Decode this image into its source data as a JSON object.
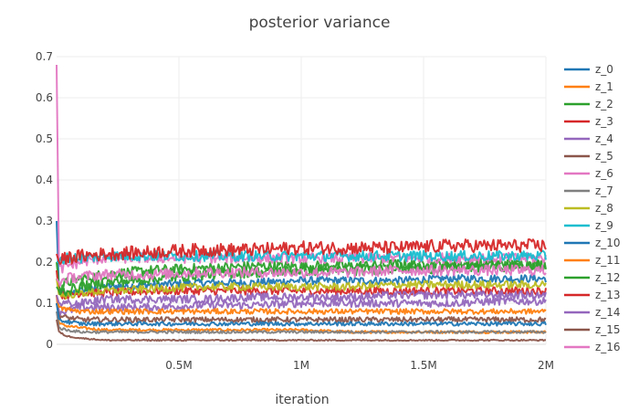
{
  "chart_data": {
    "type": "line",
    "title": "posterior variance",
    "xlabel": "iteration",
    "ylabel": "",
    "xlim": [
      0,
      2000000
    ],
    "ylim": [
      0,
      0.7
    ],
    "x_ticks": [
      {
        "value": 500000,
        "label": "0.5M"
      },
      {
        "value": 1000000,
        "label": "1M"
      },
      {
        "value": 1500000,
        "label": "1.5M"
      },
      {
        "value": 2000000,
        "label": "2M"
      }
    ],
    "y_ticks": [
      {
        "value": 0,
        "label": "0"
      },
      {
        "value": 0.1,
        "label": "0.1"
      },
      {
        "value": 0.2,
        "label": "0.2"
      },
      {
        "value": 0.3,
        "label": "0.3"
      },
      {
        "value": 0.4,
        "label": "0.4"
      },
      {
        "value": 0.5,
        "label": "0.5"
      },
      {
        "value": 0.6,
        "label": "0.6"
      },
      {
        "value": 0.7,
        "label": "0.7"
      }
    ],
    "grid": true,
    "legend_position": "right",
    "x": [
      0,
      10000,
      40000,
      100000,
      200000,
      400000,
      600000,
      800000,
      1000000,
      1200000,
      1400000,
      1600000,
      1800000,
      2000000
    ],
    "series": [
      {
        "name": "z_0",
        "color": "#1f77b4",
        "values": [
          0.3,
          0.13,
          0.12,
          0.13,
          0.14,
          0.145,
          0.15,
          0.15,
          0.155,
          0.155,
          0.155,
          0.16,
          0.16,
          0.16
        ],
        "noise": 0.006
      },
      {
        "name": "z_1",
        "color": "#ff7f0e",
        "values": [
          0.12,
          0.05,
          0.045,
          0.04,
          0.035,
          0.035,
          0.035,
          0.035,
          0.035,
          0.03,
          0.03,
          0.03,
          0.03,
          0.03
        ],
        "noise": 0.002
      },
      {
        "name": "z_2",
        "color": "#2ca02c",
        "values": [
          0.2,
          0.14,
          0.15,
          0.16,
          0.17,
          0.18,
          0.185,
          0.19,
          0.19,
          0.19,
          0.195,
          0.195,
          0.195,
          0.195
        ],
        "noise": 0.008
      },
      {
        "name": "z_3",
        "color": "#d62728",
        "values": [
          0.18,
          0.12,
          0.12,
          0.125,
          0.125,
          0.13,
          0.13,
          0.13,
          0.13,
          0.13,
          0.13,
          0.13,
          0.13,
          0.13
        ],
        "noise": 0.006
      },
      {
        "name": "z_4",
        "color": "#9467bd",
        "values": [
          0.12,
          0.08,
          0.08,
          0.09,
          0.09,
          0.09,
          0.095,
          0.095,
          0.1,
          0.1,
          0.1,
          0.1,
          0.105,
          0.105
        ],
        "noise": 0.006
      },
      {
        "name": "z_5",
        "color": "#8c564b",
        "values": [
          0.1,
          0.07,
          0.065,
          0.06,
          0.06,
          0.06,
          0.06,
          0.06,
          0.06,
          0.06,
          0.06,
          0.06,
          0.06,
          0.06
        ],
        "noise": 0.004
      },
      {
        "name": "z_6",
        "color": "#e377c2",
        "values": [
          0.68,
          0.18,
          0.19,
          0.2,
          0.21,
          0.21,
          0.21,
          0.21,
          0.21,
          0.21,
          0.21,
          0.21,
          0.21,
          0.21
        ],
        "noise": 0.008
      },
      {
        "name": "z_7",
        "color": "#7f7f7f",
        "values": [
          0.08,
          0.04,
          0.035,
          0.03,
          0.03,
          0.03,
          0.03,
          0.03,
          0.03,
          0.03,
          0.03,
          0.03,
          0.03,
          0.03
        ],
        "noise": 0.002
      },
      {
        "name": "z_8",
        "color": "#bcbd22",
        "values": [
          0.16,
          0.12,
          0.12,
          0.125,
          0.13,
          0.135,
          0.14,
          0.14,
          0.14,
          0.14,
          0.145,
          0.145,
          0.145,
          0.145
        ],
        "noise": 0.006
      },
      {
        "name": "z_9",
        "color": "#17becf",
        "values": [
          0.2,
          0.2,
          0.21,
          0.21,
          0.215,
          0.215,
          0.215,
          0.215,
          0.215,
          0.215,
          0.215,
          0.215,
          0.215,
          0.215
        ],
        "noise": 0.008
      },
      {
        "name": "z_10",
        "color": "#1f77b4",
        "values": [
          0.1,
          0.06,
          0.055,
          0.05,
          0.05,
          0.05,
          0.05,
          0.05,
          0.05,
          0.05,
          0.05,
          0.05,
          0.05,
          0.05
        ],
        "noise": 0.003
      },
      {
        "name": "z_11",
        "color": "#ff7f0e",
        "values": [
          0.12,
          0.09,
          0.085,
          0.08,
          0.08,
          0.08,
          0.08,
          0.08,
          0.08,
          0.08,
          0.08,
          0.08,
          0.08,
          0.08
        ],
        "noise": 0.004
      },
      {
        "name": "z_12",
        "color": "#2ca02c",
        "values": [
          0.14,
          0.13,
          0.13,
          0.14,
          0.15,
          0.16,
          0.17,
          0.175,
          0.18,
          0.18,
          0.185,
          0.185,
          0.19,
          0.19
        ],
        "noise": 0.008
      },
      {
        "name": "z_13",
        "color": "#d62728",
        "values": [
          0.22,
          0.2,
          0.21,
          0.215,
          0.22,
          0.225,
          0.23,
          0.23,
          0.235,
          0.235,
          0.235,
          0.24,
          0.24,
          0.24
        ],
        "noise": 0.01
      },
      {
        "name": "z_14",
        "color": "#9467bd",
        "values": [
          0.12,
          0.1,
          0.1,
          0.1,
          0.11,
          0.11,
          0.11,
          0.115,
          0.115,
          0.115,
          0.12,
          0.12,
          0.12,
          0.12
        ],
        "noise": 0.006
      },
      {
        "name": "z_15",
        "color": "#8c564b",
        "values": [
          0.06,
          0.03,
          0.02,
          0.015,
          0.01,
          0.01,
          0.01,
          0.01,
          0.01,
          0.01,
          0.01,
          0.01,
          0.01,
          0.01
        ],
        "noise": 0.001
      },
      {
        "name": "z_16",
        "color": "#e377c2",
        "values": [
          0.16,
          0.15,
          0.16,
          0.165,
          0.17,
          0.17,
          0.175,
          0.175,
          0.175,
          0.175,
          0.18,
          0.18,
          0.18,
          0.18
        ],
        "noise": 0.008
      }
    ]
  }
}
